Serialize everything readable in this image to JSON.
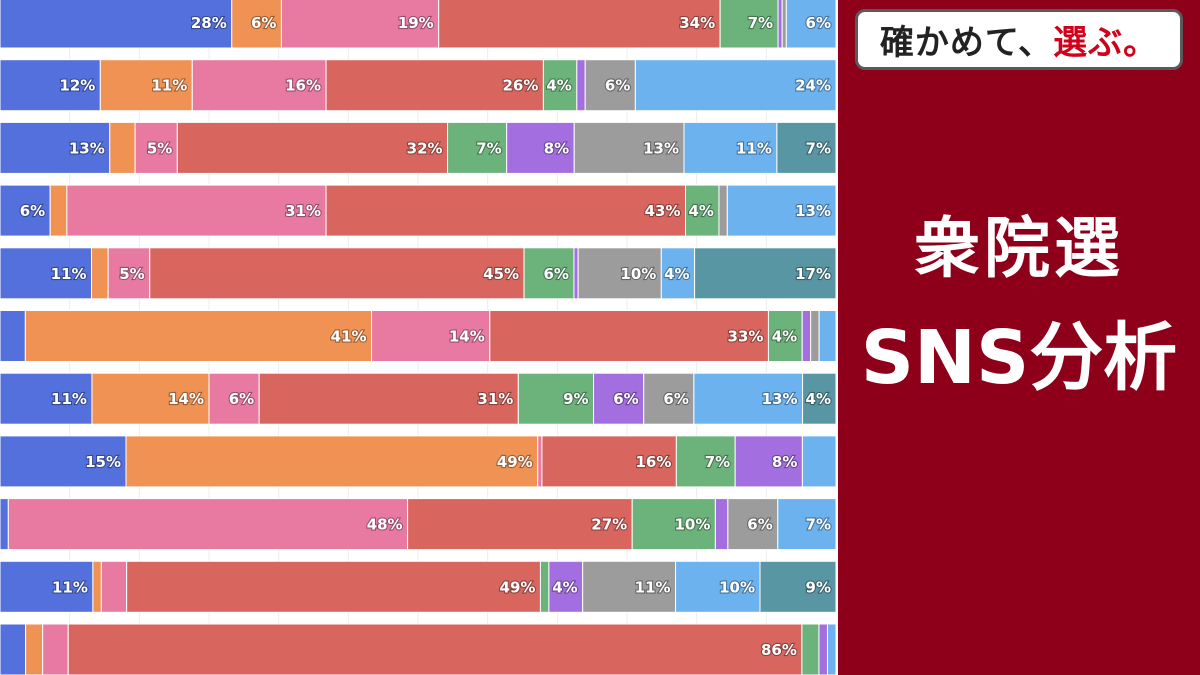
{
  "header": {
    "tagline_main": "確かめて、",
    "tagline_accent": "選ぶ。",
    "title_line1": "衆院選",
    "title_line2": "SNS分析"
  },
  "colors": {
    "panel_background": "#8e0019",
    "tagline_accent": "#d0021b",
    "series": [
      "#5470dc",
      "#ef9254",
      "#e87aa1",
      "#d8665f",
      "#6cb27b",
      "#a36ee0",
      "#9c9c9c",
      "#6cb2ee",
      "#5896a3"
    ]
  },
  "chart_data": {
    "type": "bar",
    "orientation": "horizontal",
    "stacked": true,
    "normalized": true,
    "categories": [
      "",
      "",
      "",
      "",
      "",
      "",
      "",
      "",
      "",
      "",
      ""
    ],
    "series": [
      {
        "values": [
          28,
          12,
          13,
          6,
          11,
          3,
          11,
          15,
          1,
          11,
          3
        ]
      },
      {
        "values": [
          6,
          11,
          3,
          2,
          2,
          41,
          14,
          49,
          0,
          1,
          2
        ]
      },
      {
        "values": [
          19,
          16,
          5,
          31,
          5,
          14,
          6,
          0.5,
          48,
          3,
          3
        ]
      },
      {
        "values": [
          34,
          26,
          32,
          43,
          45,
          33,
          31,
          16,
          27,
          49,
          86
        ]
      },
      {
        "values": [
          7,
          4,
          7,
          4,
          6,
          4,
          9,
          7,
          10,
          1,
          2
        ]
      },
      {
        "values": [
          0.5,
          1,
          8,
          0,
          0.5,
          1,
          6,
          8,
          1.5,
          4,
          1
        ]
      },
      {
        "values": [
          0.5,
          6,
          13,
          1,
          10,
          1,
          6,
          0,
          6,
          11,
          0
        ]
      },
      {
        "values": [
          6,
          24,
          11,
          13,
          4,
          2,
          13,
          4,
          7,
          10,
          1
        ]
      },
      {
        "values": [
          0,
          0,
          7,
          0,
          17,
          0,
          4,
          0,
          0,
          9,
          0
        ]
      }
    ],
    "labels": [
      [
        "28%",
        "6%",
        "19%",
        "34%",
        "7%",
        "",
        "",
        "6%",
        ""
      ],
      [
        "12%",
        "11%",
        "16%",
        "26%",
        "4%",
        "",
        "6%",
        "24%",
        ""
      ],
      [
        "13%",
        "",
        "5%",
        "32%",
        "7%",
        "8%",
        "13%",
        "11%",
        "7%"
      ],
      [
        "6%",
        "",
        "31%",
        "43%",
        "4%",
        "",
        "",
        "13%",
        ""
      ],
      [
        "11%",
        "",
        "5%",
        "45%",
        "6%",
        "",
        "10%",
        "4%",
        "17%"
      ],
      [
        "",
        "41%",
        "14%",
        "33%",
        "4%",
        "",
        "",
        "",
        ""
      ],
      [
        "11%",
        "14%",
        "6%",
        "31%",
        "9%",
        "6%",
        "6%",
        "13%",
        "4%"
      ],
      [
        "15%",
        "49%",
        "",
        "16%",
        "7%",
        "8%",
        "",
        "",
        ""
      ],
      [
        "",
        "",
        "48%",
        "27%",
        "10%",
        "",
        "6%",
        "7%",
        ""
      ],
      [
        "11%",
        "",
        "",
        "49%",
        "",
        "4%",
        "11%",
        "10%",
        "9%"
      ],
      [
        "",
        "",
        "",
        "86%",
        "",
        "",
        "",
        "",
        ""
      ]
    ],
    "xlim": [
      0,
      100
    ],
    "grid": true,
    "legend": "none"
  }
}
